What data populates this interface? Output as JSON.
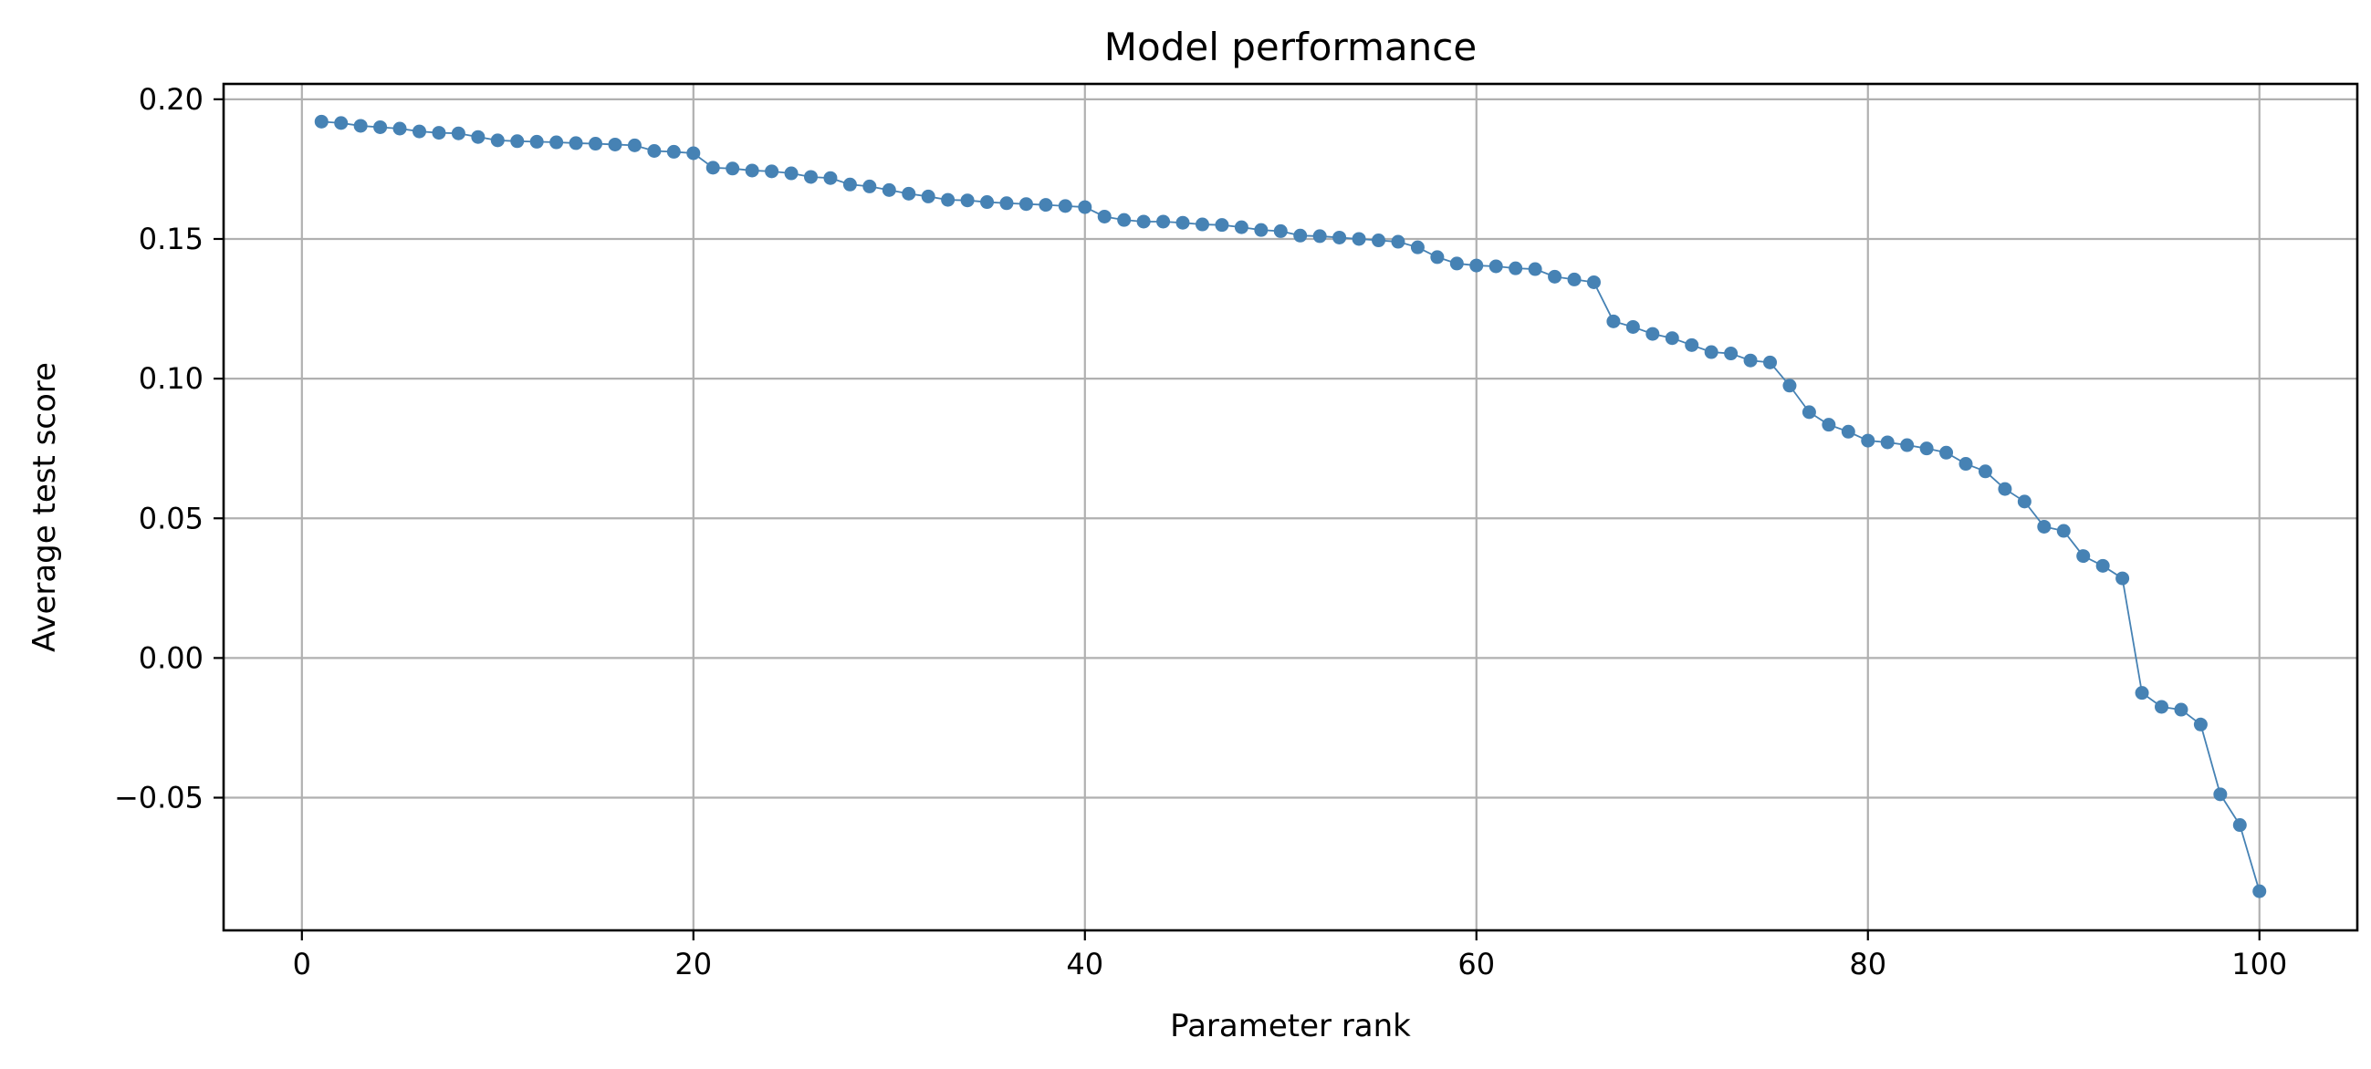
{
  "chart_data": {
    "type": "line",
    "title": "Model performance",
    "xlabel": "Parameter rank",
    "ylabel": "Average test score",
    "xlim": [
      -4,
      105
    ],
    "ylim": [
      -0.0975,
      0.2055
    ],
    "xticks": [
      0,
      20,
      40,
      60,
      80,
      100
    ],
    "xtick_labels": [
      "0",
      "20",
      "40",
      "60",
      "80",
      "100"
    ],
    "yticks": [
      -0.05,
      0.0,
      0.05,
      0.1,
      0.15,
      0.2
    ],
    "ytick_labels": [
      "−0.05",
      "0.00",
      "0.05",
      "0.10",
      "0.15",
      "0.20"
    ],
    "grid": true,
    "legend": "none",
    "color": "#4682b4",
    "marker": "circle",
    "series": [
      {
        "x": [
          1,
          2,
          3,
          4,
          5,
          6,
          7,
          8,
          9,
          10,
          11,
          12,
          13,
          14,
          15,
          16,
          17,
          18,
          19,
          20,
          21,
          22,
          23,
          24,
          25,
          26,
          27,
          28,
          29,
          30,
          31,
          32,
          33,
          34,
          35,
          36,
          37,
          38,
          39,
          40,
          41,
          42,
          43,
          44,
          45,
          46,
          47,
          48,
          49,
          50,
          51,
          52,
          53,
          54,
          55,
          56,
          57,
          58,
          59,
          60,
          61,
          62,
          63,
          64,
          65,
          66,
          67,
          68,
          69,
          70,
          71,
          72,
          73,
          74,
          75,
          76,
          77,
          78,
          79,
          80,
          81,
          82,
          83,
          84,
          85,
          86,
          87,
          88,
          89,
          90,
          91,
          92,
          93,
          94,
          95,
          96,
          97,
          98,
          99,
          100
        ],
        "y": [
          0.192,
          0.1915,
          0.1905,
          0.19,
          0.1895,
          0.1885,
          0.188,
          0.1878,
          0.1865,
          0.1853,
          0.185,
          0.1848,
          0.1846,
          0.1843,
          0.1841,
          0.1838,
          0.1835,
          0.1815,
          0.1812,
          0.1807,
          0.1755,
          0.1752,
          0.1745,
          0.1742,
          0.1735,
          0.1722,
          0.1718,
          0.1695,
          0.1688,
          0.1675,
          0.1662,
          0.1652,
          0.164,
          0.1638,
          0.1632,
          0.1628,
          0.1625,
          0.1622,
          0.1618,
          0.1614,
          0.158,
          0.1568,
          0.1562,
          0.1562,
          0.1558,
          0.1552,
          0.155,
          0.1542,
          0.1532,
          0.1528,
          0.1512,
          0.151,
          0.1505,
          0.15,
          0.1495,
          0.149,
          0.147,
          0.1435,
          0.1412,
          0.1405,
          0.1402,
          0.1395,
          0.1392,
          0.1365,
          0.1355,
          0.1345,
          0.1205,
          0.1185,
          0.116,
          0.1145,
          0.112,
          0.1095,
          0.109,
          0.1065,
          0.1058,
          0.0975,
          0.088,
          0.0835,
          0.081,
          0.0778,
          0.0772,
          0.0762,
          0.075,
          0.0735,
          0.0695,
          0.0668,
          0.0605,
          0.056,
          0.047,
          0.0455,
          0.0365,
          0.033,
          0.0285,
          -0.0125,
          -0.0175,
          -0.0185,
          -0.0238,
          -0.0488,
          -0.0598,
          -0.0835
        ]
      }
    ]
  }
}
